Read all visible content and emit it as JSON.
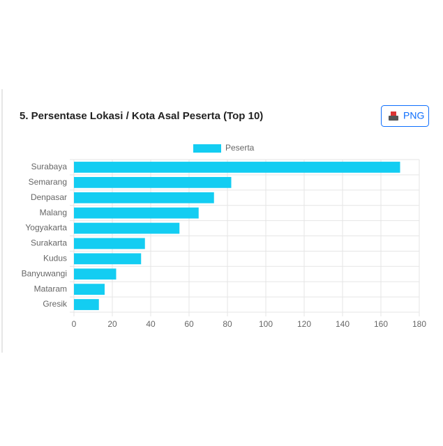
{
  "chart_data": {
    "type": "hbar",
    "title": "5. Persentase Lokasi / Kota Asal Peserta (Top 10)",
    "categories": [
      "Surabaya",
      "Semarang",
      "Denpasar",
      "Malang",
      "Yogyakarta",
      "Surakarta",
      "Kudus",
      "Banyuwangi",
      "Mataram",
      "Gresik"
    ],
    "series": [
      {
        "name": "Peserta",
        "color": "#13cdf2",
        "values": [
          170,
          82,
          73,
          65,
          55,
          37,
          35,
          22,
          16,
          13
        ]
      }
    ],
    "xlim": [
      0,
      180
    ],
    "xticks": [
      0,
      20,
      40,
      60,
      80,
      100,
      120,
      140,
      160,
      180
    ],
    "grid": true,
    "legend": "top"
  },
  "button": {
    "label": "PNG"
  }
}
